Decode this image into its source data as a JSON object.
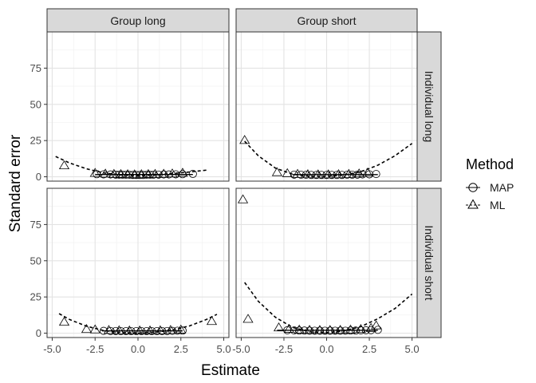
{
  "chart_data": {
    "type": "scatter",
    "xlabel": "Estimate",
    "ylabel": "Standard error",
    "xlim": [
      -5.3,
      5.3
    ],
    "ylim": [
      -3,
      100
    ],
    "x_ticks": [
      -5.0,
      -2.5,
      0.0,
      2.5,
      5.0
    ],
    "x_tick_labels": [
      "-5.0",
      "-2.5",
      "0.0",
      "2.5",
      "5.0"
    ],
    "y_ticks": [
      0,
      25,
      50,
      75
    ],
    "y_tick_labels": [
      "0",
      "25",
      "50",
      "75"
    ],
    "grid": true,
    "col_strips": [
      "Group long",
      "Group short"
    ],
    "row_strips": [
      "Individual long",
      "Individual short"
    ],
    "legend": {
      "title": "Method",
      "position": "right",
      "entries": [
        {
          "label": "MAP",
          "shape": "circle"
        },
        {
          "label": "ML",
          "shape": "triangle"
        }
      ]
    },
    "panels": [
      {
        "col": "Group long",
        "row": "Individual long",
        "MAP": {
          "x": [
            -2.4,
            -2.0,
            -1.6,
            -1.3,
            -1.1,
            -0.9,
            -0.7,
            -0.5,
            -0.3,
            -0.1,
            0.1,
            0.3,
            0.5,
            0.7,
            0.9,
            1.2,
            1.5,
            1.8,
            2.2,
            2.6,
            3.2
          ],
          "y": [
            1.8,
            1.7,
            1.6,
            1.5,
            1.5,
            1.4,
            1.4,
            1.4,
            1.3,
            1.3,
            1.3,
            1.3,
            1.4,
            1.4,
            1.4,
            1.5,
            1.6,
            1.6,
            1.7,
            1.8,
            2.0
          ]
        },
        "ML": {
          "x": [
            -4.3,
            -2.5,
            -1.9,
            -1.4,
            -1.0,
            -0.6,
            -0.2,
            0.2,
            0.6,
            1.0,
            1.5,
            2.0,
            2.6
          ],
          "y": [
            7.5,
            2.3,
            1.8,
            1.6,
            1.5,
            1.4,
            1.3,
            1.4,
            1.5,
            1.6,
            1.7,
            1.9,
            2.4
          ]
        },
        "MAP_fit": {
          "x": [
            -2.5,
            3.2
          ],
          "y": [
            1.6,
            1.6
          ]
        },
        "ML_fit": {
          "x": [
            -4.8,
            -4,
            -3,
            -2,
            -1,
            0,
            1,
            2,
            3,
            4,
            4.1
          ],
          "y": [
            14,
            9.6,
            5.5,
            2.7,
            1.2,
            0.8,
            1.2,
            2.2,
            3.3,
            4.6,
            5.2
          ]
        }
      },
      {
        "col": "Group short",
        "row": "Individual long",
        "MAP": {
          "x": [
            -1.9,
            -1.5,
            -1.2,
            -0.9,
            -0.6,
            -0.3,
            0.0,
            0.3,
            0.6,
            0.9,
            1.2,
            1.5,
            1.8,
            2.1,
            2.5,
            2.9
          ],
          "y": [
            1.5,
            1.4,
            1.4,
            1.3,
            1.3,
            1.3,
            1.3,
            1.3,
            1.3,
            1.3,
            1.4,
            1.4,
            1.5,
            1.6,
            1.7,
            1.9
          ]
        },
        "ML": {
          "x": [
            -4.8,
            -2.9,
            -2.3,
            -1.7,
            -1.1,
            -0.5,
            0.1,
            0.7,
            1.3,
            1.9,
            2.4
          ],
          "y": [
            25.0,
            2.8,
            2.1,
            1.6,
            1.4,
            1.3,
            1.3,
            1.4,
            1.6,
            1.9,
            2.5
          ]
        },
        "MAP_fit": {
          "x": [
            -2.0,
            3.0
          ],
          "y": [
            1.5,
            1.5
          ]
        },
        "ML_fit": {
          "x": [
            -4.8,
            -4,
            -3,
            -2,
            -1,
            0,
            1,
            2,
            3,
            4,
            5
          ],
          "y": [
            24.5,
            14.5,
            6,
            1.8,
            0.3,
            0.3,
            1.2,
            3.5,
            8,
            14.5,
            23
          ]
        }
      },
      {
        "col": "Group long",
        "row": "Individual short",
        "MAP": {
          "x": [
            -2.0,
            -1.6,
            -1.3,
            -1.0,
            -0.7,
            -0.4,
            -0.1,
            0.2,
            0.5,
            0.8,
            1.1,
            1.4,
            1.7,
            2.0,
            2.3,
            2.6
          ],
          "y": [
            1.6,
            1.5,
            1.5,
            1.4,
            1.4,
            1.4,
            1.4,
            1.4,
            1.4,
            1.4,
            1.4,
            1.5,
            1.5,
            1.6,
            1.7,
            1.8
          ]
        },
        "ML": {
          "x": [
            -4.3,
            -3.0,
            -2.5,
            -1.7,
            -1.1,
            -0.5,
            0.1,
            0.7,
            1.3,
            1.9,
            2.5,
            4.3
          ],
          "y": [
            7.5,
            2.5,
            2.2,
            1.8,
            1.6,
            1.5,
            1.5,
            1.5,
            1.6,
            1.8,
            2.1,
            8.0
          ]
        },
        "MAP_fit": {
          "x": [
            -2.1,
            2.6
          ],
          "y": [
            1.6,
            1.6
          ]
        },
        "ML_fit": {
          "x": [
            -4.6,
            -4,
            -3,
            -2,
            -1,
            0,
            1,
            2,
            3,
            4,
            4.6
          ],
          "y": [
            13.5,
            9.5,
            4.8,
            1.8,
            0.4,
            0.2,
            0.6,
            2.2,
            5,
            9.5,
            13
          ]
        }
      },
      {
        "col": "Group short",
        "row": "Individual short",
        "MAP": {
          "x": [
            -2.3,
            -1.9,
            -1.6,
            -1.3,
            -1.0,
            -0.7,
            -0.4,
            -0.1,
            0.2,
            0.5,
            0.8,
            1.1,
            1.4,
            1.7,
            2.0,
            2.3,
            2.6,
            3.0
          ],
          "y": [
            2.0,
            1.9,
            1.8,
            1.8,
            1.7,
            1.7,
            1.7,
            1.7,
            1.7,
            1.7,
            1.7,
            1.7,
            1.8,
            1.8,
            1.9,
            2.0,
            2.1,
            2.3
          ]
        },
        "ML": {
          "x": [
            -4.9,
            -4.6,
            -2.8,
            -2.2,
            -1.6,
            -1.0,
            -0.4,
            0.2,
            0.8,
            1.4,
            2.0,
            2.6,
            2.9
          ],
          "y": [
            92.0,
            9.5,
            3.6,
            2.6,
            2.1,
            1.9,
            1.8,
            1.8,
            1.9,
            2.1,
            2.5,
            3.2,
            5.0
          ]
        },
        "MAP_fit": {
          "x": [
            -2.9,
            3.0
          ],
          "y": [
            2.0,
            2.0
          ]
        },
        "ML_fit": {
          "x": [
            -4.8,
            -4,
            -3,
            -2,
            -1,
            0,
            1,
            2,
            3,
            4,
            5
          ],
          "y": [
            35,
            22,
            11,
            4,
            1,
            0.5,
            1.5,
            4.5,
            10,
            17,
            27
          ]
        }
      }
    ]
  }
}
